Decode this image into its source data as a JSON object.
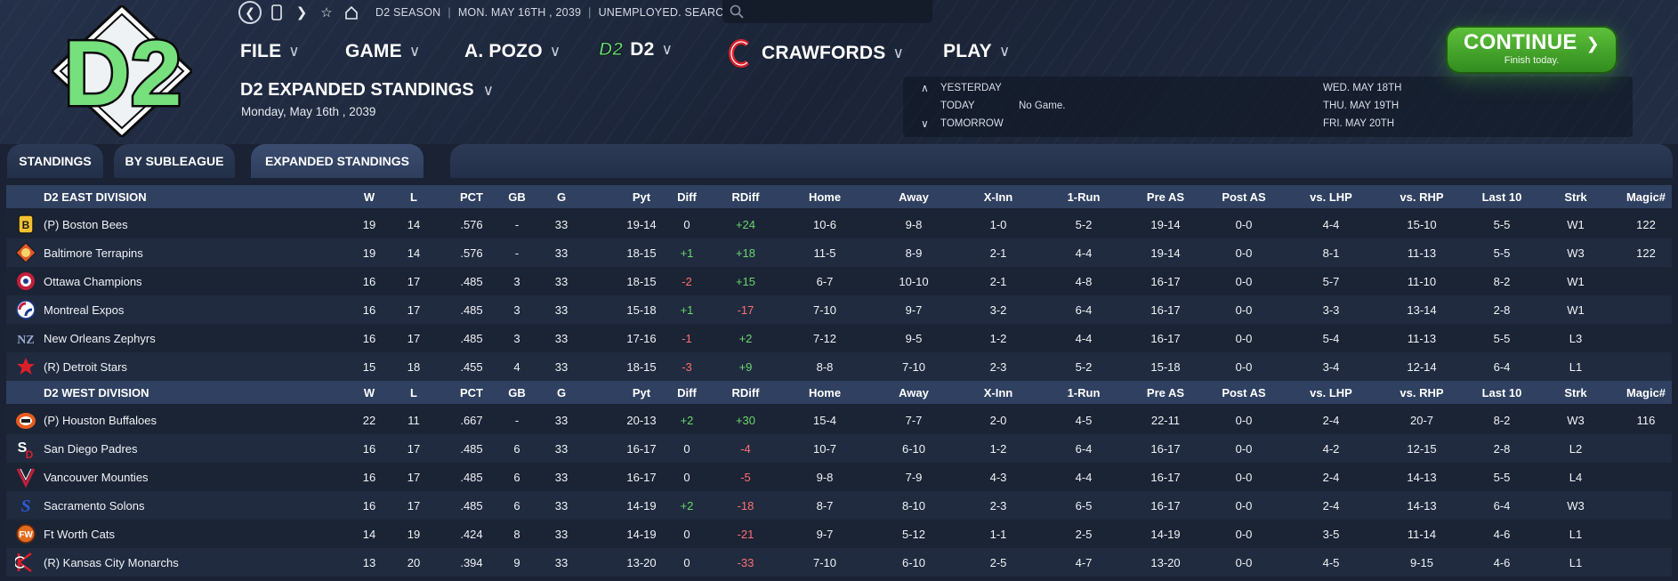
{
  "topbar": {
    "back_icon": "back-circle-icon",
    "season": "D2 SEASON",
    "date": "MON. MAY 16TH , 2039",
    "status": "UNEMPLOYED. SEARCH JOBS...",
    "search_placeholder": ""
  },
  "nav": {
    "file": "FILE",
    "game": "GAME",
    "manager": "A. POZO",
    "league_logo": "D2",
    "league": "D2",
    "team": "CRAWFORDS",
    "play": "PLAY"
  },
  "page": {
    "title": "D2 EXPANDED STANDINGS",
    "date": "Monday, May 16th , 2039"
  },
  "calendar": {
    "yesterday": "YESTERDAY",
    "today": "TODAY",
    "tomorrow": "TOMORROW",
    "today_value": "No Game.",
    "upcoming": [
      "WED. MAY 18TH",
      "THU. MAY 19TH",
      "FRI. MAY 20TH"
    ]
  },
  "continue": {
    "label": "CONTINUE",
    "sub": "Finish today."
  },
  "logo": "D2",
  "tabs": [
    "STANDINGS",
    "BY SUBLEAGUE",
    "EXPANDED STANDINGS"
  ],
  "columns": [
    "W",
    "L",
    "PCT",
    "GB",
    "G",
    "Pyt",
    "Diff",
    "RDiff",
    "Home",
    "Away",
    "X-Inn",
    "1-Run",
    "Pre AS",
    "Post AS",
    "vs. LHP",
    "vs. RHP",
    "Last 10",
    "Strk",
    "Magic#"
  ],
  "divisions": [
    {
      "name": "D2 EAST DIVISION",
      "teams": [
        {
          "name": "(P) Boston Bees",
          "logo": "bees-logo-icon",
          "vals": [
            "19",
            "14",
            ".576",
            "-",
            "33",
            "19-14",
            "0",
            "+24",
            "10-6",
            "9-8",
            "1-0",
            "5-2",
            "19-14",
            "0-0",
            "4-4",
            "15-10",
            "5-5",
            "W1",
            "122"
          ]
        },
        {
          "name": "Baltimore Terrapins",
          "logo": "terrapins-logo-icon",
          "vals": [
            "19",
            "14",
            ".576",
            "-",
            "33",
            "18-15",
            "+1",
            "+18",
            "11-5",
            "8-9",
            "2-1",
            "4-4",
            "19-14",
            "0-0",
            "8-1",
            "11-13",
            "5-5",
            "W3",
            "122"
          ]
        },
        {
          "name": "Ottawa Champions",
          "logo": "champions-logo-icon",
          "vals": [
            "16",
            "17",
            ".485",
            "3",
            "33",
            "18-15",
            "-2",
            "+15",
            "6-7",
            "10-10",
            "2-1",
            "4-8",
            "16-17",
            "0-0",
            "5-7",
            "11-10",
            "8-2",
            "W1",
            ""
          ]
        },
        {
          "name": "Montreal Expos",
          "logo": "expos-logo-icon",
          "vals": [
            "16",
            "17",
            ".485",
            "3",
            "33",
            "15-18",
            "+1",
            "-17",
            "7-10",
            "9-7",
            "3-2",
            "6-4",
            "16-17",
            "0-0",
            "3-3",
            "13-14",
            "2-8",
            "W1",
            ""
          ]
        },
        {
          "name": "New Orleans Zephyrs",
          "logo": "zephyrs-logo-icon",
          "vals": [
            "16",
            "17",
            ".485",
            "3",
            "33",
            "17-16",
            "-1",
            "+2",
            "7-12",
            "9-5",
            "1-2",
            "4-4",
            "16-17",
            "0-0",
            "5-4",
            "11-13",
            "5-5",
            "L3",
            ""
          ]
        },
        {
          "name": "(R) Detroit Stars",
          "logo": "star-logo-icon",
          "vals": [
            "15",
            "18",
            ".455",
            "4",
            "33",
            "18-15",
            "-3",
            "+9",
            "8-8",
            "7-10",
            "2-3",
            "5-2",
            "15-18",
            "0-0",
            "3-4",
            "12-14",
            "6-4",
            "L1",
            ""
          ]
        }
      ]
    },
    {
      "name": "D2 WEST DIVISION",
      "teams": [
        {
          "name": "(P) Houston Buffaloes",
          "logo": "buffaloes-logo-icon",
          "vals": [
            "22",
            "11",
            ".667",
            "-",
            "33",
            "20-13",
            "+2",
            "+30",
            "15-4",
            "7-7",
            "2-0",
            "4-5",
            "22-11",
            "0-0",
            "2-4",
            "20-7",
            "8-2",
            "W3",
            "116"
          ]
        },
        {
          "name": "San Diego Padres",
          "logo": "padres-logo-icon",
          "vals": [
            "16",
            "17",
            ".485",
            "6",
            "33",
            "16-17",
            "0",
            "-4",
            "10-7",
            "6-10",
            "1-2",
            "6-4",
            "16-17",
            "0-0",
            "4-2",
            "12-15",
            "2-8",
            "L2",
            ""
          ]
        },
        {
          "name": "Vancouver Mounties",
          "logo": "mounties-logo-icon",
          "vals": [
            "16",
            "17",
            ".485",
            "6",
            "33",
            "16-17",
            "0",
            "-5",
            "9-8",
            "7-9",
            "4-3",
            "4-4",
            "16-17",
            "0-0",
            "2-4",
            "14-13",
            "5-5",
            "L4",
            ""
          ]
        },
        {
          "name": "Sacramento Solons",
          "logo": "solons-logo-icon",
          "vals": [
            "16",
            "17",
            ".485",
            "6",
            "33",
            "14-19",
            "+2",
            "-18",
            "8-7",
            "8-10",
            "2-3",
            "6-5",
            "16-17",
            "0-0",
            "2-4",
            "14-13",
            "6-4",
            "W3",
            ""
          ]
        },
        {
          "name": "Ft Worth Cats",
          "logo": "cats-logo-icon",
          "vals": [
            "14",
            "19",
            ".424",
            "8",
            "33",
            "14-19",
            "0",
            "-21",
            "9-7",
            "5-12",
            "1-1",
            "2-5",
            "14-19",
            "0-0",
            "3-5",
            "11-14",
            "4-6",
            "L1",
            ""
          ]
        },
        {
          "name": "(R) Kansas City Monarchs",
          "logo": "monarchs-logo-icon",
          "vals": [
            "13",
            "20",
            ".394",
            "9",
            "33",
            "13-20",
            "0",
            "-33",
            "7-10",
            "6-10",
            "2-5",
            "4-7",
            "13-20",
            "0-0",
            "4-5",
            "9-15",
            "4-6",
            "L1",
            ""
          ]
        }
      ]
    }
  ],
  "colors": {
    "positive": "#6ad66d",
    "negative": "#ff6f6f",
    "accent_green": "#5fc23c",
    "team_red": "#d9202a"
  }
}
